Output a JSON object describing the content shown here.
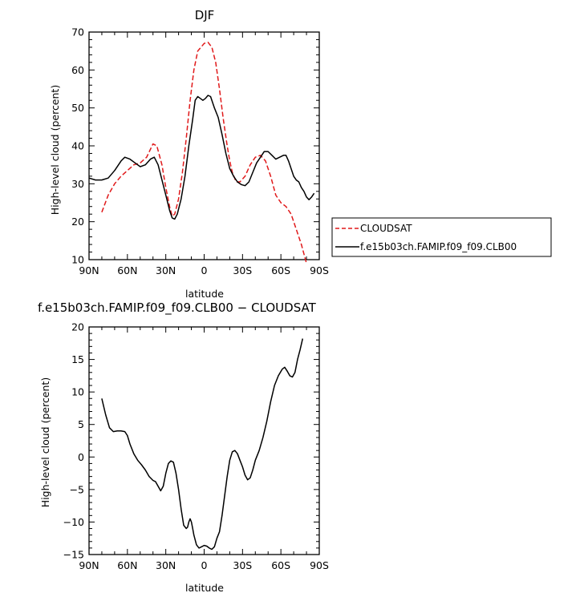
{
  "chart_data": [
    {
      "type": "line",
      "title": "DJF",
      "xlabel": "latitude",
      "ylabel": "High-level cloud (percent)",
      "xlim": [
        -90,
        90
      ],
      "ylim": [
        10,
        70
      ],
      "x_ticks": [
        -90,
        -60,
        -30,
        0,
        30,
        60,
        90
      ],
      "x_tick_labels": [
        "90N",
        "60N",
        "30N",
        "0",
        "30S",
        "60S",
        "90S"
      ],
      "y_ticks": [
        10,
        20,
        30,
        40,
        50,
        60,
        70
      ],
      "y_tick_labels": [
        "10",
        "20",
        "30",
        "40",
        "50",
        "60",
        "70"
      ],
      "grid": false,
      "legend_position": "right",
      "series": [
        {
          "name": "CLOUDSAT",
          "color": "#e0191a",
          "style": "dashed",
          "points": [
            [
              -80,
              22.5
            ],
            [
              -75,
              27
            ],
            [
              -70,
              30
            ],
            [
              -65,
              32
            ],
            [
              -60,
              33.5
            ],
            [
              -55,
              35
            ],
            [
              -50,
              35.5
            ],
            [
              -45,
              37
            ],
            [
              -40,
              40.5
            ],
            [
              -37,
              40
            ],
            [
              -33,
              35
            ],
            [
              -30,
              29
            ],
            [
              -27,
              24
            ],
            [
              -25,
              21.5
            ],
            [
              -23,
              22
            ],
            [
              -20,
              26
            ],
            [
              -17,
              33
            ],
            [
              -14,
              42
            ],
            [
              -11,
              52
            ],
            [
              -8,
              60
            ],
            [
              -5,
              65
            ],
            [
              0,
              67
            ],
            [
              3,
              67.3
            ],
            [
              6,
              66
            ],
            [
              9,
              62
            ],
            [
              12,
              55
            ],
            [
              15,
              47
            ],
            [
              18,
              40
            ],
            [
              20,
              36
            ],
            [
              22,
              33
            ],
            [
              25,
              30.5
            ],
            [
              28,
              30.5
            ],
            [
              32,
              32
            ],
            [
              36,
              35
            ],
            [
              40,
              37
            ],
            [
              44,
              37.5
            ],
            [
              48,
              36
            ],
            [
              52,
              32
            ],
            [
              56,
              27
            ],
            [
              60,
              25
            ],
            [
              64,
              24
            ],
            [
              68,
              22
            ],
            [
              72,
              18
            ],
            [
              76,
              14
            ],
            [
              80,
              9
            ]
          ]
        },
        {
          "name": "f.e15b03ch.FAMIP.f09_f09.CLB00",
          "color": "#000000",
          "style": "solid",
          "points": [
            [
              -90,
              31.5
            ],
            [
              -85,
              31
            ],
            [
              -80,
              31
            ],
            [
              -75,
              31.5
            ],
            [
              -70,
              33.5
            ],
            [
              -65,
              36
            ],
            [
              -62,
              37
            ],
            [
              -58,
              36.5
            ],
            [
              -54,
              35.5
            ],
            [
              -50,
              34.5
            ],
            [
              -46,
              35
            ],
            [
              -42,
              36.5
            ],
            [
              -39,
              37
            ],
            [
              -36,
              35
            ],
            [
              -33,
              31
            ],
            [
              -30,
              27
            ],
            [
              -27,
              23
            ],
            [
              -25,
              21
            ],
            [
              -23,
              20.7
            ],
            [
              -21,
              22
            ],
            [
              -18,
              26
            ],
            [
              -15,
              32
            ],
            [
              -12,
              40
            ],
            [
              -9,
              47
            ],
            [
              -7,
              52
            ],
            [
              -5,
              53
            ],
            [
              -3,
              52.5
            ],
            [
              -1,
              52
            ],
            [
              1,
              52.5
            ],
            [
              3,
              53.3
            ],
            [
              5,
              53
            ],
            [
              8,
              50
            ],
            [
              11,
              47.5
            ],
            [
              14,
              43
            ],
            [
              17,
              38
            ],
            [
              20,
              34
            ],
            [
              23,
              32
            ],
            [
              26,
              30.5
            ],
            [
              29,
              29.8
            ],
            [
              32,
              29.5
            ],
            [
              35,
              30.5
            ],
            [
              38,
              33
            ],
            [
              41,
              35.5
            ],
            [
              44,
              37
            ],
            [
              47,
              38.5
            ],
            [
              50,
              38.5
            ],
            [
              53,
              37.5
            ],
            [
              56,
              36.5
            ],
            [
              59,
              37
            ],
            [
              62,
              37.5
            ],
            [
              64,
              37.5
            ],
            [
              66,
              36
            ],
            [
              68,
              34
            ],
            [
              70,
              32
            ],
            [
              72,
              31
            ],
            [
              74,
              30.5
            ],
            [
              76,
              29
            ],
            [
              78,
              28
            ],
            [
              80,
              26.5
            ],
            [
              82,
              25.8
            ],
            [
              84,
              26.5
            ],
            [
              86,
              27.5
            ]
          ]
        }
      ]
    },
    {
      "type": "line",
      "title": "f.e15b03ch.FAMIP.f09_f09.CLB00 − CLOUDSAT",
      "xlabel": "latitude",
      "ylabel": "High-level cloud (percent)",
      "xlim": [
        -90,
        90
      ],
      "ylim": [
        -15,
        20
      ],
      "x_ticks": [
        -90,
        -60,
        -30,
        0,
        30,
        60,
        90
      ],
      "x_tick_labels": [
        "90N",
        "60N",
        "30N",
        "0",
        "30S",
        "60S",
        "90S"
      ],
      "y_ticks": [
        -15,
        -10,
        -5,
        0,
        5,
        10,
        15,
        20
      ],
      "y_tick_labels": [
        "−15",
        "−10",
        "−5",
        "0",
        "5",
        "10",
        "15",
        "20"
      ],
      "grid": false,
      "series": [
        {
          "color": "#000000",
          "style": "solid",
          "points": [
            [
              -80,
              9
            ],
            [
              -77,
              6.5
            ],
            [
              -74,
              4.5
            ],
            [
              -71,
              3.9
            ],
            [
              -68,
              4
            ],
            [
              -65,
              4
            ],
            [
              -62,
              3.9
            ],
            [
              -60,
              3.3
            ],
            [
              -58,
              2
            ],
            [
              -55,
              0.5
            ],
            [
              -52,
              -0.5
            ],
            [
              -49,
              -1.2
            ],
            [
              -46,
              -2
            ],
            [
              -43,
              -3
            ],
            [
              -40,
              -3.6
            ],
            [
              -38,
              -3.8
            ],
            [
              -36,
              -4.5
            ],
            [
              -34,
              -5.2
            ],
            [
              -32,
              -4.5
            ],
            [
              -30,
              -2.5
            ],
            [
              -28,
              -1
            ],
            [
              -26,
              -0.6
            ],
            [
              -24,
              -0.8
            ],
            [
              -22,
              -2.5
            ],
            [
              -20,
              -5
            ],
            [
              -18,
              -8
            ],
            [
              -16,
              -10.5
            ],
            [
              -14,
              -11
            ],
            [
              -13,
              -10.8
            ],
            [
              -12,
              -10
            ],
            [
              -11,
              -9.5
            ],
            [
              -10,
              -10
            ],
            [
              -9,
              -11
            ],
            [
              -8,
              -12
            ],
            [
              -6,
              -13.5
            ],
            [
              -4,
              -14
            ],
            [
              -2,
              -13.8
            ],
            [
              0,
              -13.6
            ],
            [
              2,
              -13.7
            ],
            [
              4,
              -14
            ],
            [
              6,
              -14.2
            ],
            [
              8,
              -13.8
            ],
            [
              10,
              -12.5
            ],
            [
              12,
              -11.5
            ],
            [
              14,
              -9
            ],
            [
              16,
              -6
            ],
            [
              18,
              -3
            ],
            [
              20,
              -0.5
            ],
            [
              22,
              0.8
            ],
            [
              24,
              1
            ],
            [
              26,
              0.5
            ],
            [
              28,
              -0.5
            ],
            [
              30,
              -1.5
            ],
            [
              32,
              -2.8
            ],
            [
              34,
              -3.5
            ],
            [
              36,
              -3.2
            ],
            [
              38,
              -2
            ],
            [
              40,
              -0.5
            ],
            [
              43,
              1
            ],
            [
              46,
              3
            ],
            [
              49,
              5.5
            ],
            [
              52,
              8.5
            ],
            [
              55,
              11
            ],
            [
              58,
              12.5
            ],
            [
              61,
              13.5
            ],
            [
              63,
              13.8
            ],
            [
              65,
              13.2
            ],
            [
              67,
              12.5
            ],
            [
              69,
              12.3
            ],
            [
              71,
              13
            ],
            [
              73,
              15
            ],
            [
              75,
              16.5
            ],
            [
              77,
              18.2
            ]
          ]
        }
      ]
    }
  ]
}
